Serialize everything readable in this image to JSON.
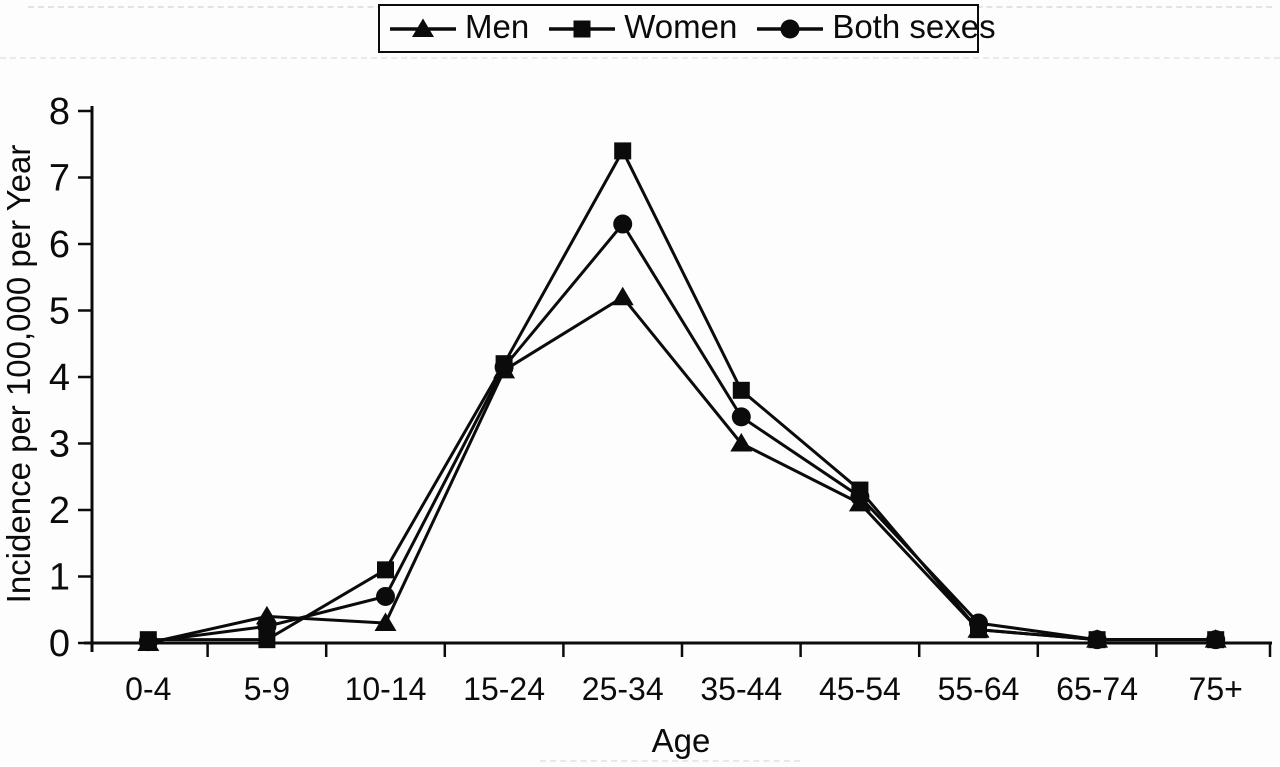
{
  "figure": {
    "background": "#fdfdfd",
    "ink_color": "#0b0b0b"
  },
  "chart_data": {
    "type": "line",
    "title": "",
    "xlabel": "Age",
    "ylabel": "Incidence per 100,000 per Year",
    "categories": [
      "0-4",
      "5-9",
      "10-14",
      "15-24",
      "25-34",
      "35-44",
      "45-54",
      "55-64",
      "65-74",
      "75+"
    ],
    "yticks": [
      0,
      1,
      2,
      3,
      4,
      5,
      6,
      7,
      8
    ],
    "ylim": [
      0,
      8
    ],
    "grid": false,
    "legend_position": "top-center",
    "legend_border": true,
    "series": [
      {
        "name": "Men",
        "marker": "triangle",
        "color": "#0b0b0b",
        "values": [
          0,
          0.4,
          0.3,
          4.1,
          5.2,
          3.0,
          2.1,
          0.2,
          0.05,
          0.05
        ]
      },
      {
        "name": "Women",
        "marker": "square",
        "color": "#0b0b0b",
        "values": [
          0.05,
          0.05,
          1.1,
          4.2,
          7.4,
          3.8,
          2.3,
          0.2,
          0.05,
          0.05
        ]
      },
      {
        "name": "Both sexes",
        "marker": "circle",
        "color": "#0b0b0b",
        "values": [
          0.02,
          0.25,
          0.7,
          4.15,
          6.3,
          3.4,
          2.2,
          0.3,
          0.05,
          0.05
        ]
      }
    ]
  }
}
